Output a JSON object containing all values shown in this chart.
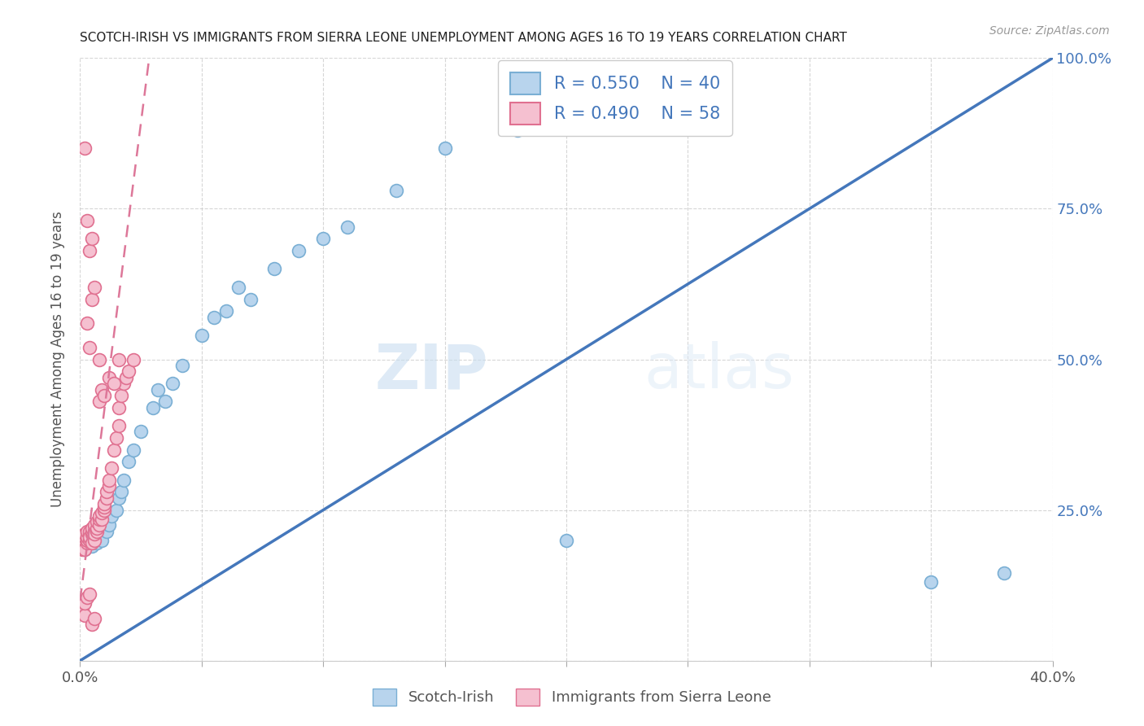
{
  "title": "SCOTCH-IRISH VS IMMIGRANTS FROM SIERRA LEONE UNEMPLOYMENT AMONG AGES 16 TO 19 YEARS CORRELATION CHART",
  "source": "Source: ZipAtlas.com",
  "ylabel": "Unemployment Among Ages 16 to 19 years",
  "xlim": [
    0.0,
    0.4
  ],
  "ylim": [
    0.0,
    1.0
  ],
  "legend_R1": "R = 0.550",
  "legend_N1": "N = 40",
  "legend_R2": "R = 0.490",
  "legend_N2": "N = 58",
  "blue_fill": "#b8d4ed",
  "blue_edge": "#7aafd4",
  "blue_line": "#4477bb",
  "pink_fill": "#f5c0d0",
  "pink_edge": "#e07090",
  "pink_line": "#dd7799",
  "watermark": "ZIPatlas",
  "scotch_irish_x": [
    0.001,
    0.002,
    0.003,
    0.004,
    0.005,
    0.006,
    0.007,
    0.008,
    0.009,
    0.01,
    0.011,
    0.012,
    0.013,
    0.015,
    0.016,
    0.017,
    0.018,
    0.02,
    0.022,
    0.025,
    0.03,
    0.032,
    0.035,
    0.038,
    0.042,
    0.05,
    0.055,
    0.06,
    0.065,
    0.07,
    0.08,
    0.09,
    0.1,
    0.11,
    0.13,
    0.15,
    0.18,
    0.2,
    0.35,
    0.38
  ],
  "scotch_irish_y": [
    0.195,
    0.185,
    0.2,
    0.21,
    0.19,
    0.205,
    0.195,
    0.215,
    0.2,
    0.22,
    0.215,
    0.225,
    0.24,
    0.25,
    0.27,
    0.28,
    0.3,
    0.33,
    0.35,
    0.38,
    0.42,
    0.45,
    0.43,
    0.46,
    0.49,
    0.54,
    0.57,
    0.58,
    0.62,
    0.6,
    0.65,
    0.68,
    0.7,
    0.72,
    0.78,
    0.85,
    0.88,
    0.2,
    0.13,
    0.145
  ],
  "sierra_leone_x": [
    0.001,
    0.001,
    0.001,
    0.001,
    0.002,
    0.002,
    0.002,
    0.002,
    0.002,
    0.003,
    0.003,
    0.003,
    0.003,
    0.004,
    0.004,
    0.004,
    0.004,
    0.005,
    0.005,
    0.005,
    0.005,
    0.006,
    0.006,
    0.006,
    0.006,
    0.007,
    0.007,
    0.007,
    0.008,
    0.008,
    0.008,
    0.009,
    0.009,
    0.01,
    0.01,
    0.01,
    0.011,
    0.011,
    0.012,
    0.012,
    0.013,
    0.014,
    0.015,
    0.016,
    0.016,
    0.017,
    0.018,
    0.019,
    0.02,
    0.022,
    0.001,
    0.002,
    0.002,
    0.003,
    0.004,
    0.005,
    0.006,
    0.008
  ],
  "sierra_leone_y": [
    0.195,
    0.19,
    0.185,
    0.2,
    0.195,
    0.2,
    0.205,
    0.185,
    0.21,
    0.195,
    0.2,
    0.205,
    0.215,
    0.2,
    0.21,
    0.215,
    0.205,
    0.21,
    0.195,
    0.215,
    0.22,
    0.2,
    0.215,
    0.225,
    0.21,
    0.215,
    0.22,
    0.23,
    0.225,
    0.235,
    0.24,
    0.235,
    0.245,
    0.25,
    0.255,
    0.26,
    0.27,
    0.28,
    0.29,
    0.3,
    0.32,
    0.35,
    0.37,
    0.39,
    0.42,
    0.44,
    0.46,
    0.47,
    0.48,
    0.5,
    0.085,
    0.075,
    0.095,
    0.105,
    0.11,
    0.06,
    0.07,
    0.5
  ],
  "pink_outlier_x": [
    0.002,
    0.003,
    0.004,
    0.005,
    0.005,
    0.006,
    0.003,
    0.004
  ],
  "pink_outlier_y": [
    0.85,
    0.73,
    0.68,
    0.7,
    0.6,
    0.62,
    0.56,
    0.52
  ],
  "pink_mid_x": [
    0.008,
    0.009,
    0.01,
    0.012,
    0.014,
    0.016
  ],
  "pink_mid_y": [
    0.43,
    0.45,
    0.44,
    0.47,
    0.46,
    0.5
  ]
}
